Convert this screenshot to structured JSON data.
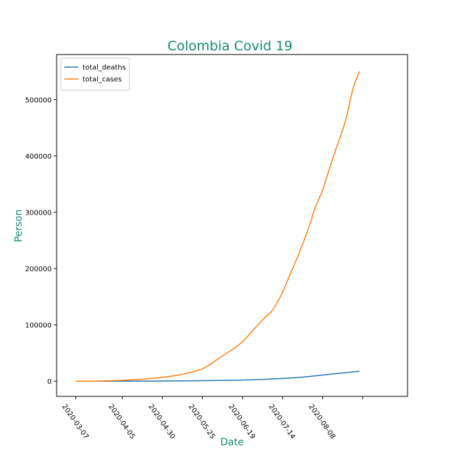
{
  "chart_data": {
    "type": "line",
    "title": "Colombia Covid 19",
    "xlabel": "Date",
    "ylabel": "Person",
    "title_color": "#138a72",
    "legend_position": "upper-left",
    "grid": false,
    "x_tick_labels": [
      "2020-03-07",
      "2020-04-05",
      "2020-04-30",
      "2020-05-25",
      "2020-06-19",
      "2020-07-14",
      "2020-08-08"
    ],
    "y_ticks": [
      0,
      100000,
      200000,
      300000,
      400000,
      500000
    ],
    "y_tick_labels": [
      "0",
      "100000",
      "200000",
      "300000",
      "400000",
      "500000"
    ],
    "xlim": [
      "2020-02-24",
      "2020-09-30"
    ],
    "ylim": [
      -27000,
      580000
    ],
    "series": [
      {
        "name": "total_deaths",
        "color": "#1f77b4",
        "x": [
          "2020-03-07",
          "2020-04-05",
          "2020-04-30",
          "2020-05-25",
          "2020-06-10",
          "2020-06-19",
          "2020-07-01",
          "2020-07-14",
          "2020-07-25",
          "2020-08-08",
          "2020-08-20",
          "2020-08-31"
        ],
        "y": [
          0,
          50,
          280,
          850,
          1500,
          2000,
          3000,
          4800,
          6800,
          10800,
          14500,
          17600
        ]
      },
      {
        "name": "total_cases",
        "color": "#ff7f0e",
        "x": [
          "2020-03-07",
          "2020-03-20",
          "2020-04-05",
          "2020-04-20",
          "2020-04-30",
          "2020-05-10",
          "2020-05-25",
          "2020-06-05",
          "2020-06-12",
          "2020-06-19",
          "2020-06-26",
          "2020-07-03",
          "2020-07-08",
          "2020-07-14",
          "2020-07-18",
          "2020-07-24",
          "2020-07-30",
          "2020-08-03",
          "2020-08-08",
          "2020-08-12",
          "2020-08-16",
          "2020-08-22",
          "2020-08-27",
          "2020-08-31"
        ],
        "y": [
          0,
          200,
          1500,
          4000,
          7000,
          11000,
          22000,
          42000,
          55000,
          70000,
          92000,
          113000,
          127000,
          158000,
          185000,
          225000,
          270000,
          305000,
          340000,
          375000,
          410000,
          460000,
          520000,
          550000
        ]
      }
    ]
  }
}
